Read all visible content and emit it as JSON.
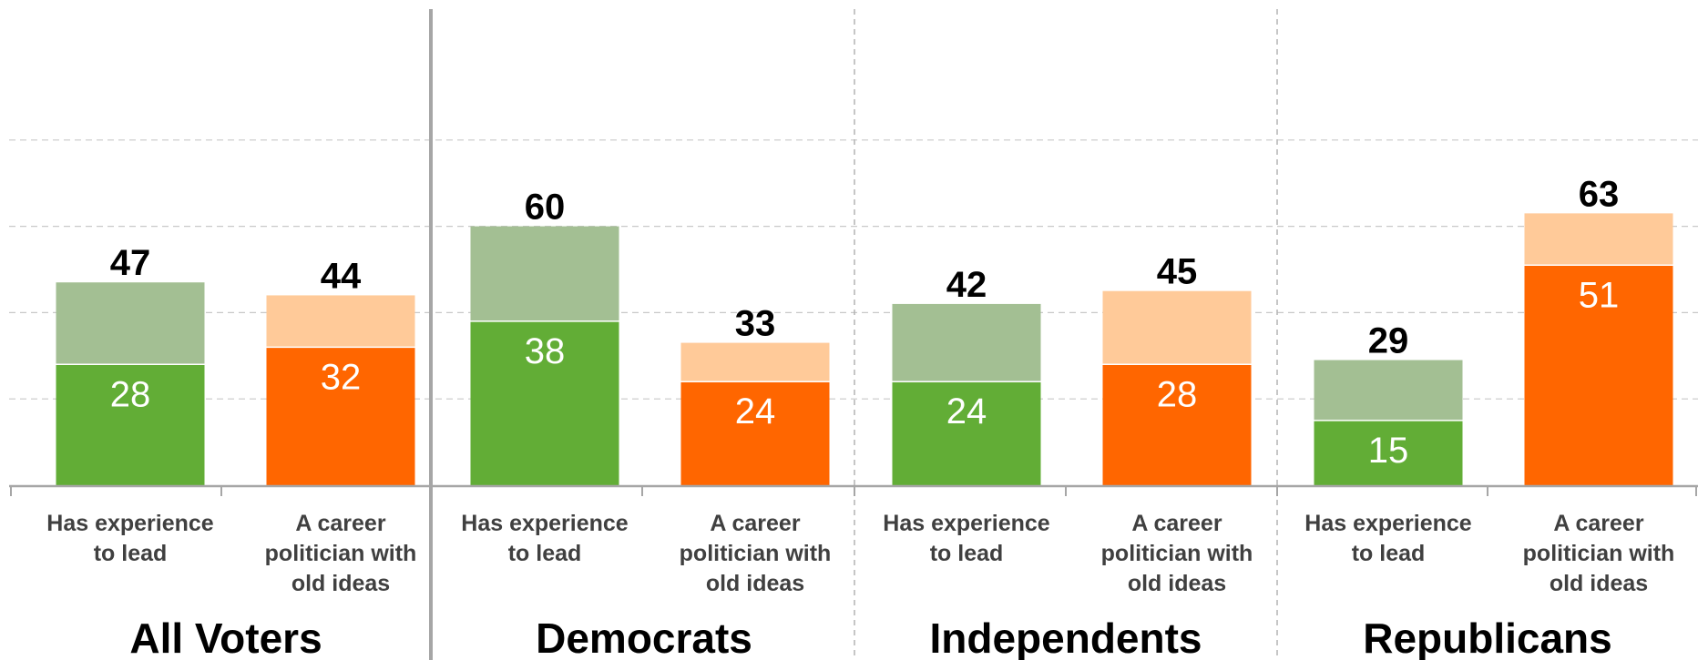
{
  "chart_data": {
    "type": "bar",
    "stacked": true,
    "grid": true,
    "gridlines": [
      20,
      40,
      60,
      80
    ],
    "ylim": [
      0,
      85
    ],
    "groups": [
      {
        "name": "All Voters",
        "bars": [
          {
            "category": "Has experience to lead",
            "lines": [
              "Has experience",
              "to lead"
            ],
            "strong": 28,
            "total": 47,
            "color": "green"
          },
          {
            "category": "A career politician with old ideas",
            "lines": [
              "A career",
              "politician with",
              "old ideas"
            ],
            "strong": 32,
            "total": 44,
            "color": "orange"
          }
        ]
      },
      {
        "name": "Democrats",
        "bars": [
          {
            "category": "Has experience to lead",
            "lines": [
              "Has experience",
              "to lead"
            ],
            "strong": 38,
            "total": 60,
            "color": "green"
          },
          {
            "category": "A career politician with old ideas",
            "lines": [
              "A career",
              "politician with",
              "old ideas"
            ],
            "strong": 24,
            "total": 33,
            "color": "orange"
          }
        ]
      },
      {
        "name": "Independents",
        "bars": [
          {
            "category": "Has experience to lead",
            "lines": [
              "Has experience",
              "to lead"
            ],
            "strong": 24,
            "total": 42,
            "color": "green"
          },
          {
            "category": "A career politician with old ideas",
            "lines": [
              "A career",
              "politician with",
              "old ideas"
            ],
            "strong": 28,
            "total": 45,
            "color": "orange"
          }
        ]
      },
      {
        "name": "Republicans",
        "bars": [
          {
            "category": "Has experience to lead",
            "lines": [
              "Has experience",
              "to lead"
            ],
            "strong": 15,
            "total": 29,
            "color": "green"
          },
          {
            "category": "A career politician with old ideas",
            "lines": [
              "A career",
              "politician with",
              "old ideas"
            ],
            "strong": 51,
            "total": 63,
            "color": "orange"
          }
        ]
      }
    ]
  },
  "colors": {
    "green_strong": "#62ad36",
    "green_light": "#a3bf93",
    "orange_strong": "#ff6600",
    "orange_light": "#ffca99",
    "gridline": "#c8c8c8",
    "axis": "#a6a6a6",
    "group_divider_solid": "#a6a6a6",
    "group_divider_dashed": "#b3b3b3"
  }
}
